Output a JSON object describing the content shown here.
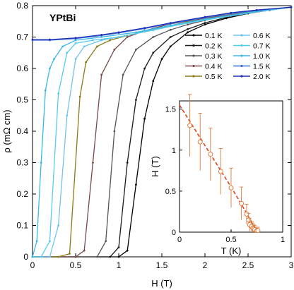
{
  "chart_data": [
    {
      "type": "line",
      "title": "YPtBi",
      "xlabel": "H (T)",
      "ylabel": "ρ (mΩ cm)",
      "xlim": [
        0,
        3
      ],
      "ylim": [
        0,
        0.8
      ],
      "xticks": [
        "0",
        "0.5",
        "1",
        "1.5",
        "2",
        "2.5",
        "3"
      ],
      "yticks": [
        "0",
        "0.1",
        "0.2",
        "0.3",
        "0.4",
        "0.5",
        "0.6",
        "0.7",
        "0.8"
      ],
      "grid": false,
      "legend": "top-right",
      "series": [
        {
          "name": "0.1 K",
          "color": "#000000",
          "x": [
            0.0,
            0.5,
            1.0,
            1.1,
            1.2,
            1.3,
            1.4,
            1.5,
            1.6,
            1.8,
            2.0,
            2.25,
            2.5,
            2.75,
            3.0
          ],
          "y": [
            0.0,
            0.0,
            0.0,
            0.02,
            0.23,
            0.44,
            0.56,
            0.63,
            0.67,
            0.715,
            0.74,
            0.76,
            0.775,
            0.786,
            0.795
          ]
        },
        {
          "name": "0.2 K",
          "color": "#1a1a1a",
          "x": [
            0.0,
            0.5,
            0.9,
            1.0,
            1.1,
            1.2,
            1.3,
            1.4,
            1.6,
            1.8,
            2.0,
            2.25,
            2.5,
            2.75,
            3.0
          ],
          "y": [
            0.0,
            0.0,
            0.0,
            0.03,
            0.3,
            0.5,
            0.6,
            0.65,
            0.7,
            0.725,
            0.745,
            0.763,
            0.777,
            0.787,
            0.795
          ]
        },
        {
          "name": "0.3 K",
          "color": "#555555",
          "x": [
            0.0,
            0.5,
            0.75,
            0.85,
            0.95,
            1.05,
            1.2,
            1.4,
            1.6,
            1.8,
            2.0,
            2.25,
            2.5,
            2.75,
            3.0
          ],
          "y": [
            0.0,
            0.0,
            0.0,
            0.05,
            0.4,
            0.58,
            0.66,
            0.7,
            0.723,
            0.74,
            0.753,
            0.767,
            0.779,
            0.788,
            0.795
          ]
        },
        {
          "name": "0.4 K",
          "color": "#7a4a4a",
          "x": [
            0.0,
            0.5,
            0.6,
            0.7,
            0.8,
            0.95,
            1.1,
            1.3,
            1.6,
            2.0,
            2.5,
            3.0
          ],
          "y": [
            0.0,
            0.0,
            0.02,
            0.3,
            0.58,
            0.66,
            0.7,
            0.72,
            0.742,
            0.76,
            0.779,
            0.795
          ]
        },
        {
          "name": "0.5 K",
          "color": "#8a7a1a",
          "x": [
            0.0,
            0.3,
            0.43,
            0.55,
            0.62,
            0.75,
            0.9,
            1.1,
            1.4,
            1.8,
            2.4,
            3.0
          ],
          "y": [
            0.0,
            0.0,
            0.01,
            0.51,
            0.62,
            0.67,
            0.69,
            0.705,
            0.725,
            0.748,
            0.773,
            0.795
          ]
        },
        {
          "name": "0.6 K",
          "color": "#6fc3ee",
          "x": [
            0.0,
            0.2,
            0.3,
            0.4,
            0.5,
            0.6,
            0.8,
            1.0,
            1.3,
            1.7,
            2.2,
            2.7,
            3.0
          ],
          "y": [
            0.0,
            0.0,
            0.1,
            0.45,
            0.63,
            0.67,
            0.69,
            0.7,
            0.717,
            0.74,
            0.763,
            0.784,
            0.795
          ]
        },
        {
          "name": "0.7 K",
          "color": "#55ccee",
          "x": [
            0.0,
            0.1,
            0.2,
            0.3,
            0.4,
            0.5,
            0.7,
            1.0,
            1.4,
            1.8,
            2.3,
            2.8,
            3.0
          ],
          "y": [
            0.0,
            0.0,
            0.05,
            0.52,
            0.65,
            0.68,
            0.69,
            0.7,
            0.722,
            0.745,
            0.768,
            0.788,
            0.795
          ]
        },
        {
          "name": "1.0 K",
          "color": "#3ab8e8",
          "x": [
            0.0,
            0.05,
            0.1,
            0.15,
            0.2,
            0.25,
            0.35,
            0.5,
            0.8,
            1.2,
            1.6,
            2.0,
            2.5,
            3.0
          ],
          "y": [
            0.0,
            0.05,
            0.3,
            0.53,
            0.6,
            0.63,
            0.67,
            0.69,
            0.7,
            0.715,
            0.737,
            0.757,
            0.778,
            0.795
          ]
        },
        {
          "name": "1.5 K",
          "color": "#3b6fd8",
          "x": [
            0.0,
            0.2,
            0.5,
            0.8,
            1.0,
            1.3,
            1.6,
            2.0,
            2.3,
            2.6,
            3.0
          ],
          "y": [
            0.69,
            0.69,
            0.695,
            0.705,
            0.713,
            0.727,
            0.743,
            0.762,
            0.775,
            0.785,
            0.795
          ]
        },
        {
          "name": "2.0 K",
          "color": "#1f2fb5",
          "x": [
            0.0,
            0.2,
            0.5,
            0.8,
            1.0,
            1.3,
            1.6,
            2.0,
            2.3,
            2.6,
            3.0
          ],
          "y": [
            0.692,
            0.692,
            0.697,
            0.707,
            0.715,
            0.729,
            0.745,
            0.764,
            0.777,
            0.786,
            0.795
          ]
        }
      ]
    },
    {
      "type": "scatter",
      "title": "",
      "xlabel": "T (K)",
      "ylabel": "H (T)",
      "xlim": [
        0,
        1
      ],
      "ylim": [
        0,
        1.6
      ],
      "xticks": [
        "0",
        "0.5",
        "1"
      ],
      "yticks": [
        "0",
        "0.5",
        "1",
        "1.5"
      ],
      "grid": false,
      "marker_color": "#e07b3a",
      "fit_color": "#e0461e",
      "points": [
        {
          "x": 0.1,
          "y": 1.3,
          "err": 0.38
        },
        {
          "x": 0.2,
          "y": 1.1,
          "err": 0.35
        },
        {
          "x": 0.3,
          "y": 0.95,
          "err": 0.32
        },
        {
          "x": 0.4,
          "y": 0.74,
          "err": 0.28
        },
        {
          "x": 0.5,
          "y": 0.54,
          "err": 0.24
        },
        {
          "x": 0.6,
          "y": 0.35,
          "err": 0.2
        },
        {
          "x": 0.65,
          "y": 0.22,
          "err": 0.12
        },
        {
          "x": 0.67,
          "y": 0.15,
          "err": 0.08
        },
        {
          "x": 0.68,
          "y": 0.09,
          "err": 0.08
        },
        {
          "x": 0.7,
          "y": 0.07,
          "err": 0.06
        },
        {
          "x": 0.71,
          "y": 0.05,
          "err": 0.06
        },
        {
          "x": 0.72,
          "y": 0.04,
          "err": 0.05
        },
        {
          "x": 0.73,
          "y": 0.03,
          "err": 0.05
        },
        {
          "x": 0.75,
          "y": 0.02,
          "err": 0.04
        },
        {
          "x": 0.76,
          "y": 0.02,
          "err": 0.04
        }
      ],
      "fit": {
        "x": [
          0.0,
          0.1,
          0.2,
          0.3,
          0.4,
          0.5,
          0.6,
          0.7,
          0.76
        ],
        "y": [
          1.55,
          1.35,
          1.15,
          0.95,
          0.75,
          0.55,
          0.34,
          0.12,
          0.0
        ]
      }
    }
  ]
}
